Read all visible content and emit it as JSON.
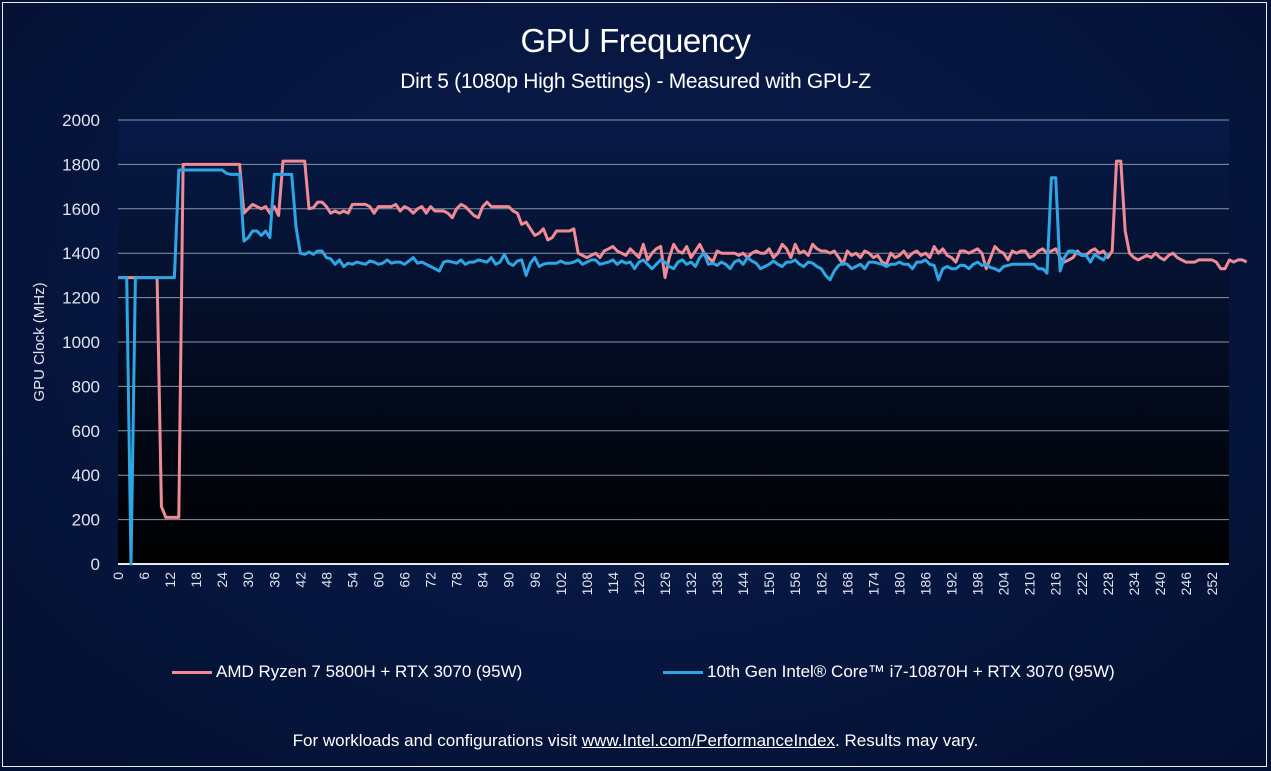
{
  "chart_data": {
    "type": "line",
    "title": "GPU Frequency",
    "subtitle": "Dirt 5 (1080p High Settings) -  Measured with GPU-Z",
    "xlabel": "",
    "ylabel": "GPU Clock (MHz)",
    "ylim": [
      0,
      2000
    ],
    "xlim": [
      0,
      256
    ],
    "yticks": [
      0,
      200,
      400,
      600,
      800,
      1000,
      1200,
      1400,
      1600,
      1800,
      2000
    ],
    "xticks": [
      0,
      6,
      12,
      18,
      24,
      30,
      36,
      42,
      48,
      54,
      60,
      66,
      72,
      78,
      84,
      90,
      96,
      102,
      108,
      114,
      120,
      126,
      132,
      138,
      144,
      150,
      156,
      162,
      168,
      174,
      180,
      186,
      192,
      198,
      204,
      210,
      216,
      222,
      228,
      234,
      240,
      246,
      252
    ],
    "grid": true,
    "legend_position": "bottom",
    "series": [
      {
        "name": "AMD Ryzen 7 5800H + RTX 3070 (95W)",
        "color": "#f08a94",
        "x_start": 0,
        "values": [
          1290,
          1290,
          1290,
          1290,
          1290,
          1290,
          1290,
          1290,
          1290,
          1290,
          260,
          210,
          210,
          210,
          210,
          1800,
          1800,
          1800,
          1800,
          1800,
          1800,
          1800,
          1800,
          1800,
          1800,
          1800,
          1800,
          1800,
          1800,
          1580,
          1600,
          1620,
          1610,
          1600,
          1610,
          1580,
          1610,
          1570,
          1815,
          1815,
          1815,
          1815,
          1815,
          1815,
          1600,
          1605,
          1630,
          1630,
          1610,
          1580,
          1590,
          1580,
          1590,
          1580,
          1620,
          1620,
          1620,
          1620,
          1610,
          1580,
          1610,
          1610,
          1610,
          1610,
          1620,
          1590,
          1610,
          1600,
          1580,
          1600,
          1610,
          1580,
          1610,
          1590,
          1590,
          1590,
          1580,
          1560,
          1600,
          1620,
          1610,
          1590,
          1570,
          1560,
          1610,
          1630,
          1610,
          1610,
          1610,
          1610,
          1610,
          1590,
          1580,
          1530,
          1540,
          1510,
          1480,
          1490,
          1510,
          1460,
          1470,
          1500,
          1500,
          1500,
          1500,
          1510,
          1400,
          1390,
          1380,
          1390,
          1400,
          1380,
          1410,
          1420,
          1430,
          1410,
          1400,
          1390,
          1420,
          1400,
          1380,
          1440,
          1370,
          1400,
          1420,
          1430,
          1290,
          1380,
          1440,
          1410,
          1400,
          1430,
          1380,
          1410,
          1440,
          1400,
          1380,
          1360,
          1410,
          1400,
          1400,
          1400,
          1400,
          1390,
          1400,
          1380,
          1400,
          1410,
          1400,
          1400,
          1420,
          1380,
          1400,
          1440,
          1420,
          1380,
          1440,
          1400,
          1410,
          1390,
          1440,
          1420,
          1410,
          1410,
          1400,
          1410,
          1380,
          1350,
          1410,
          1390,
          1400,
          1380,
          1410,
          1400,
          1380,
          1390,
          1360,
          1350,
          1400,
          1380,
          1390,
          1410,
          1380,
          1400,
          1410,
          1390,
          1400,
          1380,
          1430,
          1400,
          1420,
          1390,
          1380,
          1360,
          1410,
          1410,
          1400,
          1410,
          1420,
          1400,
          1330,
          1380,
          1430,
          1410,
          1400,
          1370,
          1410,
          1400,
          1410,
          1410,
          1380,
          1390,
          1410,
          1420,
          1400,
          1410,
          1420,
          1380,
          1360,
          1370,
          1380,
          1410,
          1390,
          1390,
          1410,
          1420,
          1400,
          1410,
          1380,
          1410,
          1815,
          1815,
          1500,
          1400,
          1380,
          1370,
          1380,
          1390,
          1380,
          1400,
          1380,
          1370,
          1390,
          1400,
          1380,
          1370,
          1360,
          1360,
          1360,
          1370,
          1370,
          1370,
          1370,
          1360,
          1330,
          1330,
          1370,
          1360,
          1370,
          1370,
          1360
        ]
      },
      {
        "name": "10th Gen Intel® Core™ i7-10870H + RTX 3070 (95W)",
        "color": "#2fa6e4",
        "x_start": 0,
        "values": [
          1290,
          1290,
          1290,
          0,
          1290,
          1290,
          1290,
          1290,
          1290,
          1290,
          1290,
          1290,
          1290,
          1290,
          1775,
          1775,
          1775,
          1775,
          1775,
          1775,
          1775,
          1775,
          1775,
          1775,
          1775,
          1760,
          1755,
          1755,
          1755,
          1455,
          1470,
          1500,
          1500,
          1480,
          1500,
          1470,
          1755,
          1755,
          1755,
          1755,
          1755,
          1520,
          1400,
          1395,
          1405,
          1395,
          1410,
          1410,
          1380,
          1375,
          1350,
          1370,
          1340,
          1355,
          1350,
          1360,
          1355,
          1350,
          1365,
          1360,
          1350,
          1355,
          1370,
          1355,
          1360,
          1360,
          1350,
          1365,
          1380,
          1355,
          1360,
          1350,
          1340,
          1330,
          1320,
          1360,
          1365,
          1360,
          1355,
          1370,
          1350,
          1360,
          1360,
          1370,
          1365,
          1360,
          1380,
          1350,
          1360,
          1395,
          1355,
          1345,
          1365,
          1370,
          1300,
          1355,
          1380,
          1340,
          1350,
          1355,
          1355,
          1355,
          1365,
          1355,
          1355,
          1360,
          1370,
          1350,
          1360,
          1370,
          1370,
          1350,
          1355,
          1360,
          1370,
          1350,
          1365,
          1355,
          1360,
          1330,
          1360,
          1370,
          1350,
          1330,
          1350,
          1370,
          1360,
          1340,
          1330,
          1360,
          1370,
          1350,
          1360,
          1340,
          1380,
          1400,
          1350,
          1355,
          1345,
          1360,
          1350,
          1330,
          1360,
          1370,
          1350,
          1380,
          1365,
          1355,
          1330,
          1340,
          1350,
          1365,
          1350,
          1340,
          1360,
          1360,
          1370,
          1350,
          1340,
          1360,
          1355,
          1340,
          1330,
          1300,
          1280,
          1320,
          1345,
          1355,
          1350,
          1330,
          1340,
          1350,
          1330,
          1360,
          1360,
          1355,
          1350,
          1340,
          1350,
          1350,
          1360,
          1350,
          1350,
          1330,
          1360,
          1360,
          1370,
          1350,
          1345,
          1280,
          1330,
          1340,
          1330,
          1330,
          1345,
          1345,
          1330,
          1350,
          1360,
          1345,
          1350,
          1335,
          1330,
          1320,
          1340,
          1345,
          1350,
          1350,
          1350,
          1350,
          1350,
          1350,
          1330,
          1330,
          1310,
          1740,
          1740,
          1320,
          1380,
          1410,
          1410,
          1400,
          1390,
          1390,
          1360,
          1395,
          1380,
          1370,
          1400
        ]
      }
    ]
  },
  "legend": [
    {
      "label": "AMD Ryzen 7 5800H + RTX 3070 (95W)",
      "color": "#f08a94"
    },
    {
      "label": "10th Gen Intel® Core™ i7-10870H + RTX 3070 (95W)",
      "color": "#2fa6e4"
    }
  ],
  "footer": {
    "prefix": "For workloads and configurations visit ",
    "link": "www.Intel.com/PerformanceIndex",
    "suffix": ". Results may vary."
  }
}
